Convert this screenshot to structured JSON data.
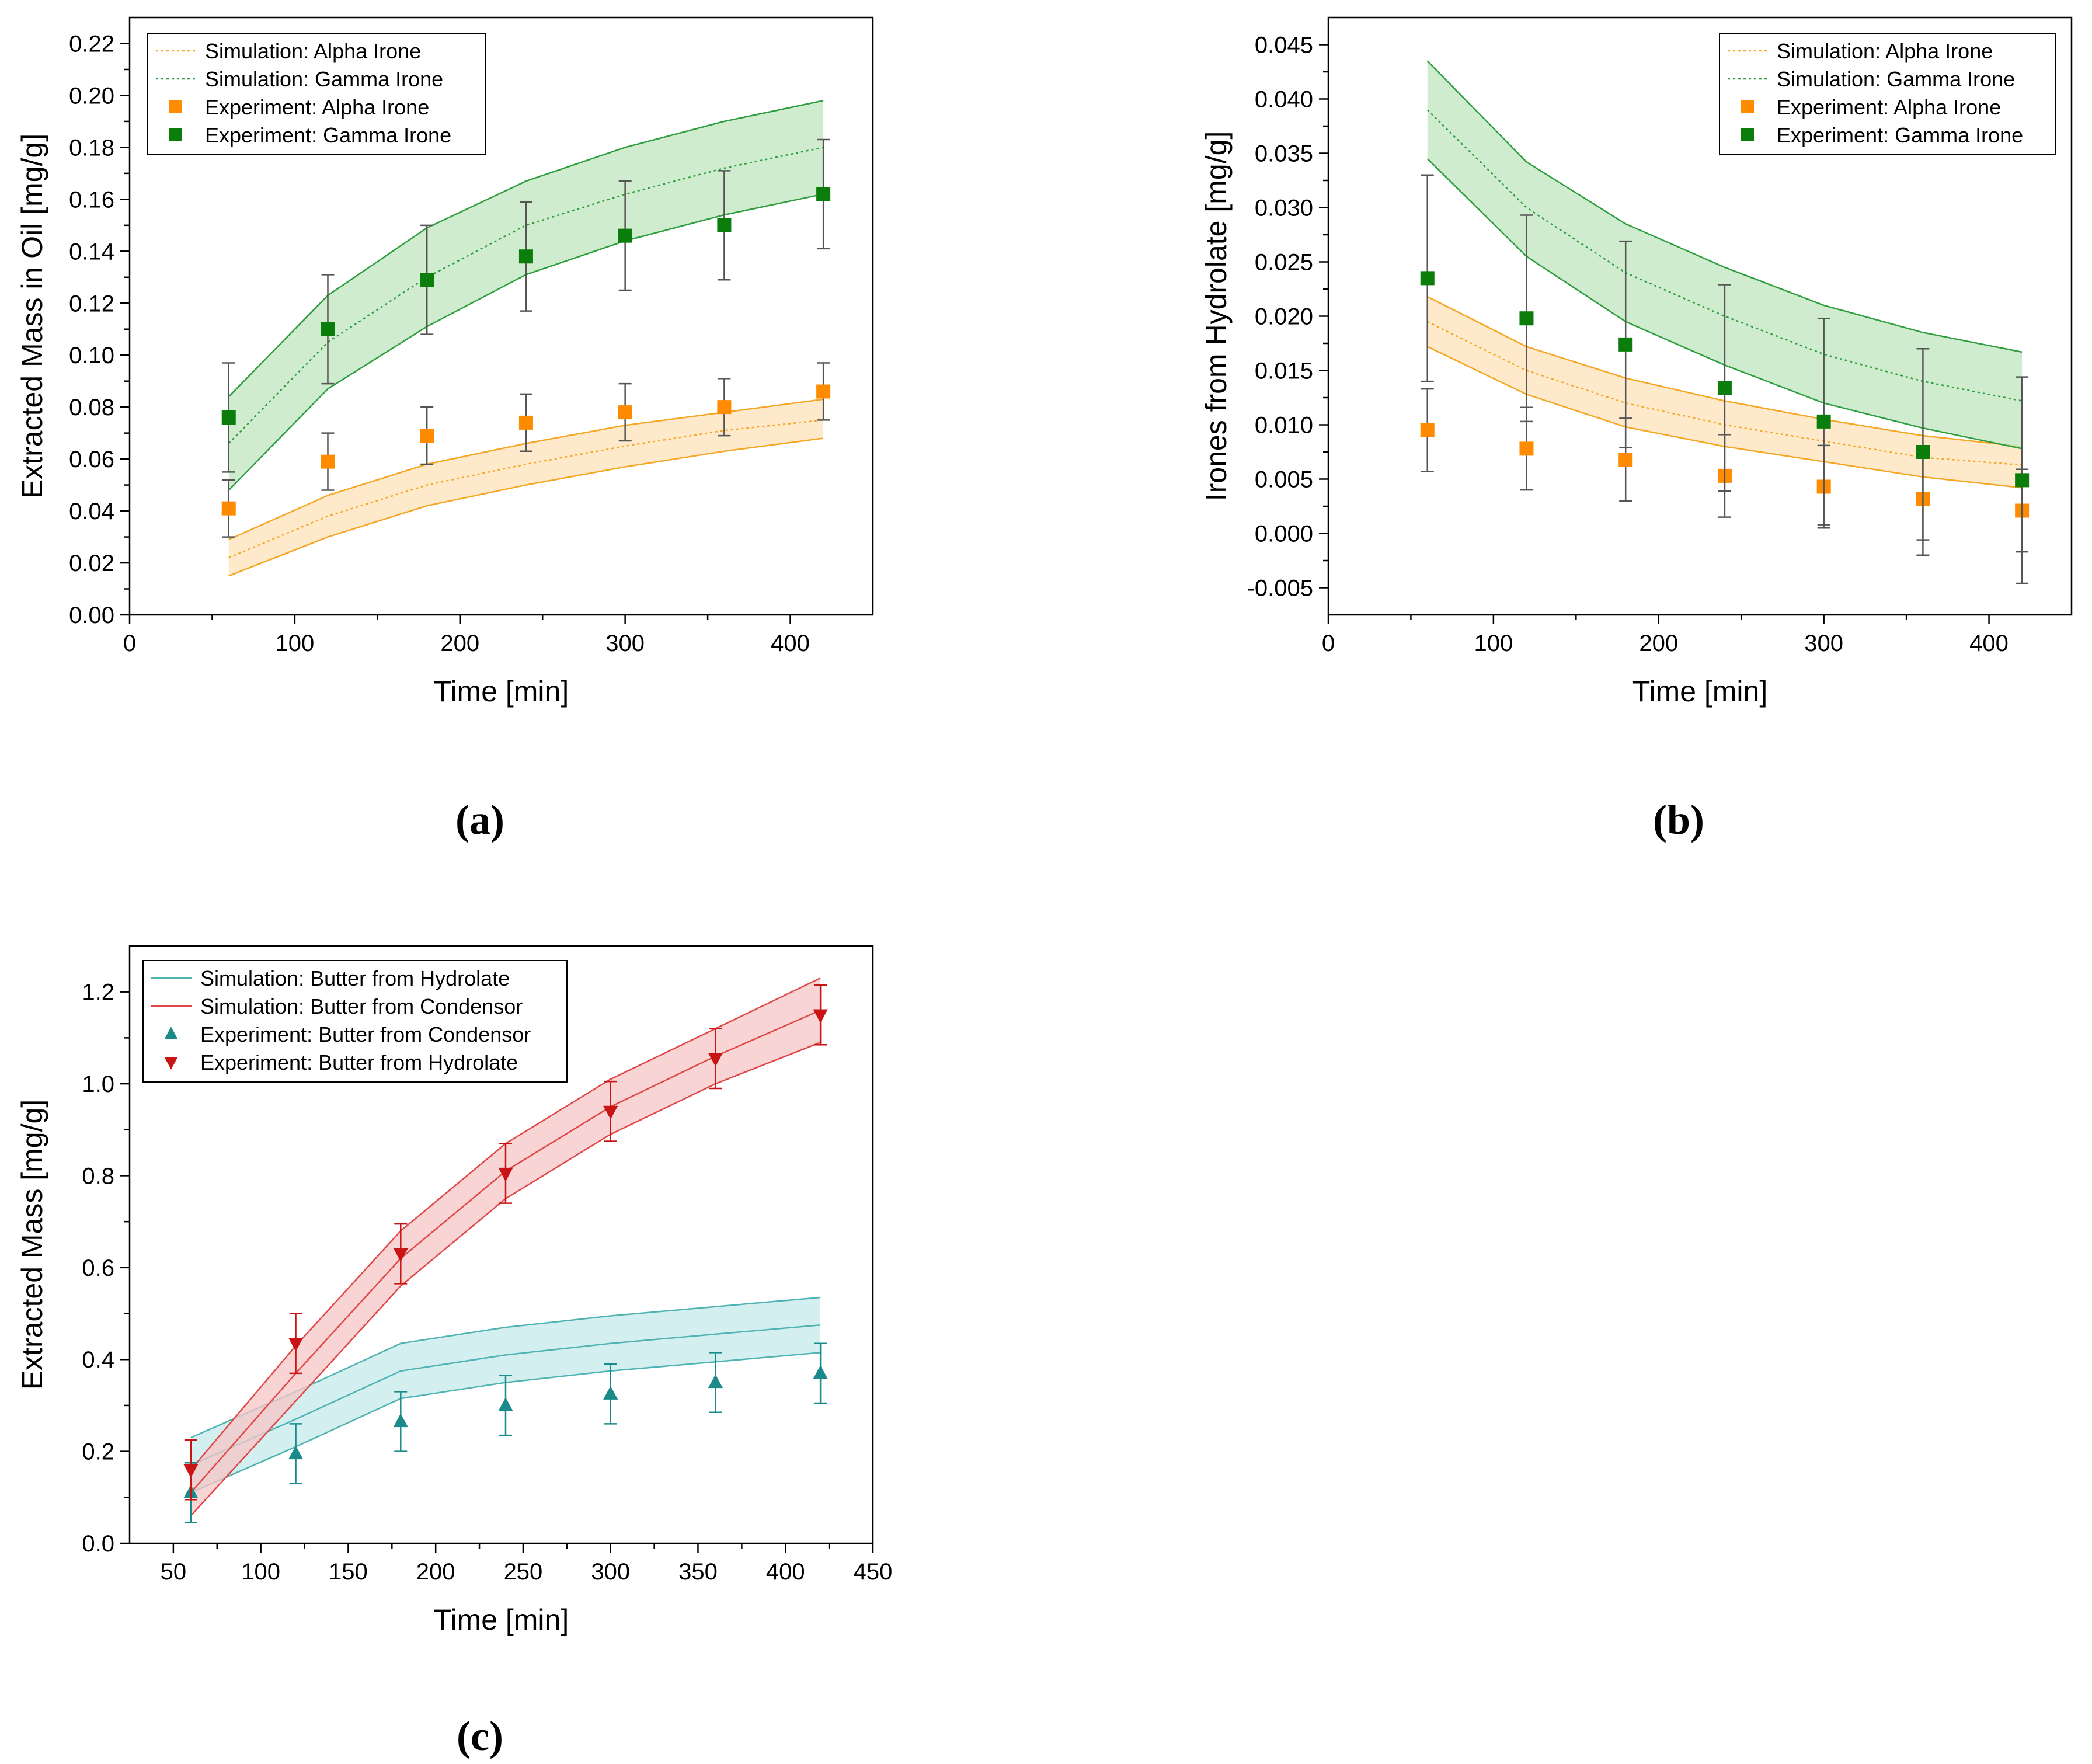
{
  "chart_data": [
    {
      "id": "a",
      "type": "line",
      "panel_label": "(a)",
      "xlabel": "Time [min]",
      "ylabel": "Extracted Mass in Oil [mg/g]",
      "xlim": [
        0,
        450
      ],
      "ylim": [
        0,
        0.23
      ],
      "xticks": [
        0,
        100,
        200,
        300,
        400
      ],
      "yticks": [
        0,
        0.02,
        0.04,
        0.06,
        0.08,
        0.1,
        0.12,
        0.14,
        0.16,
        0.18,
        0.2,
        0.22
      ],
      "xtick_labels": [
        "0",
        "100",
        "200",
        "300",
        "400"
      ],
      "ytick_labels": [
        "0.00",
        "0.02",
        "0.04",
        "0.06",
        "0.08",
        "0.10",
        "0.12",
        "0.14",
        "0.16",
        "0.18",
        "0.20",
        "0.22"
      ],
      "legend_position": "top-left",
      "legend": [
        {
          "label": "Simulation: Alpha Irone",
          "kind": "dotted-line",
          "color": "#f5a623"
        },
        {
          "label": "Simulation: Gamma Irone",
          "kind": "dotted-line",
          "color": "#2e9e3e"
        },
        {
          "label": "Experiment: Alpha Irone",
          "kind": "square",
          "color": "#ff8c00"
        },
        {
          "label": "Experiment: Gamma Irone",
          "kind": "square",
          "color": "#0a7d0a"
        }
      ],
      "x": [
        60,
        120,
        180,
        240,
        300,
        360,
        420
      ],
      "simulation": [
        {
          "name": "Alpha Irone",
          "color": "#f5a623",
          "fill": "#fde2b8",
          "dash": "dotted",
          "values": [
            0.022,
            0.038,
            0.05,
            0.058,
            0.065,
            0.071,
            0.075
          ],
          "lower": [
            0.015,
            0.03,
            0.042,
            0.05,
            0.057,
            0.063,
            0.068
          ],
          "upper": [
            0.029,
            0.046,
            0.058,
            0.066,
            0.073,
            0.078,
            0.083
          ]
        },
        {
          "name": "Gamma Irone",
          "color": "#2e9e3e",
          "fill": "#bfe6bf",
          "dash": "dotted",
          "values": [
            0.066,
            0.105,
            0.13,
            0.15,
            0.162,
            0.172,
            0.18
          ],
          "lower": [
            0.048,
            0.087,
            0.111,
            0.131,
            0.144,
            0.154,
            0.162
          ],
          "upper": [
            0.084,
            0.123,
            0.149,
            0.167,
            0.18,
            0.19,
            0.198
          ]
        }
      ],
      "experiment": [
        {
          "name": "Alpha Irone",
          "color": "#ff8c00",
          "marker": "square",
          "values": [
            0.041,
            0.059,
            0.069,
            0.074,
            0.078,
            0.08,
            0.086
          ],
          "errors": [
            0.011,
            0.011,
            0.011,
            0.011,
            0.011,
            0.011,
            0.011
          ]
        },
        {
          "name": "Gamma Irone",
          "color": "#0a7d0a",
          "marker": "square",
          "values": [
            0.076,
            0.11,
            0.129,
            0.138,
            0.146,
            0.15,
            0.162
          ],
          "errors": [
            0.021,
            0.021,
            0.021,
            0.021,
            0.021,
            0.021,
            0.021
          ]
        }
      ]
    },
    {
      "id": "b",
      "type": "line",
      "panel_label": "(b)",
      "xlabel": "Time [min]",
      "ylabel": "Irones from Hydrolate [mg/g]",
      "xlim": [
        0,
        450
      ],
      "ylim": [
        -0.0075,
        0.0475
      ],
      "xticks": [
        0,
        100,
        200,
        300,
        400
      ],
      "yticks": [
        -0.005,
        0,
        0.005,
        0.01,
        0.015,
        0.02,
        0.025,
        0.03,
        0.035,
        0.04,
        0.045
      ],
      "xtick_labels": [
        "0",
        "100",
        "200",
        "300",
        "400"
      ],
      "ytick_labels": [
        "-0.005",
        "0.000",
        "0.005",
        "0.010",
        "0.015",
        "0.020",
        "0.025",
        "0.030",
        "0.035",
        "0.040",
        "0.045"
      ],
      "legend_position": "top-right",
      "legend": [
        {
          "label": "Simulation: Alpha Irone",
          "kind": "dotted-line",
          "color": "#f5a623"
        },
        {
          "label": "Simulation: Gamma Irone",
          "kind": "dotted-line",
          "color": "#2e9e3e"
        },
        {
          "label": "Experiment: Alpha Irone",
          "kind": "square",
          "color": "#ff8c00"
        },
        {
          "label": "Experiment: Gamma Irone",
          "kind": "square",
          "color": "#0a7d0a"
        }
      ],
      "x": [
        60,
        120,
        180,
        240,
        300,
        360,
        420
      ],
      "simulation": [
        {
          "name": "Alpha Irone",
          "color": "#f5a623",
          "fill": "#fde2b8",
          "dash": "dotted",
          "values": [
            0.0195,
            0.015,
            0.012,
            0.01,
            0.0085,
            0.007,
            0.0063
          ],
          "lower": [
            0.0172,
            0.0128,
            0.0098,
            0.008,
            0.0066,
            0.0052,
            0.0042
          ],
          "upper": [
            0.0218,
            0.0172,
            0.0143,
            0.0122,
            0.0105,
            0.009,
            0.008
          ]
        },
        {
          "name": "Gamma Irone",
          "color": "#2e9e3e",
          "fill": "#bfe6bf",
          "dash": "dotted",
          "values": [
            0.039,
            0.03,
            0.024,
            0.02,
            0.0165,
            0.014,
            0.0122
          ],
          "lower": [
            0.0345,
            0.0255,
            0.0195,
            0.0155,
            0.012,
            0.0097,
            0.0078
          ],
          "upper": [
            0.0435,
            0.0342,
            0.0285,
            0.0245,
            0.021,
            0.0185,
            0.0167
          ]
        }
      ],
      "experiment": [
        {
          "name": "Alpha Irone",
          "color": "#ff8c00",
          "marker": "square",
          "values": [
            0.0095,
            0.0078,
            0.0068,
            0.0053,
            0.0043,
            0.0032,
            0.0021
          ],
          "errors": [
            0.0038,
            0.0038,
            0.0038,
            0.0038,
            0.0038,
            0.0038,
            0.0038
          ]
        },
        {
          "name": "Gamma Irone",
          "color": "#0a7d0a",
          "marker": "square",
          "values": [
            0.0235,
            0.0198,
            0.0174,
            0.0134,
            0.0103,
            0.0075,
            0.0049
          ],
          "errors": [
            0.0095,
            0.0095,
            0.0095,
            0.0095,
            0.0095,
            0.0095,
            0.0095
          ]
        }
      ]
    },
    {
      "id": "c",
      "type": "line",
      "panel_label": "(c)",
      "xlabel": "Time [min]",
      "ylabel": "Extracted Mass [mg/g]",
      "xlim": [
        25,
        450
      ],
      "ylim": [
        0,
        1.3
      ],
      "xticks": [
        50,
        100,
        150,
        200,
        250,
        300,
        350,
        400,
        450
      ],
      "yticks": [
        0,
        0.2,
        0.4,
        0.6,
        0.8,
        1.0,
        1.2
      ],
      "xtick_labels": [
        "50",
        "100",
        "150",
        "200",
        "250",
        "300",
        "350",
        "400",
        "450"
      ],
      "ytick_labels": [
        "0.0",
        "0.2",
        "0.4",
        "0.6",
        "0.8",
        "1.0",
        "1.2"
      ],
      "legend_position": "top-left",
      "legend": [
        {
          "label": "Simulation: Butter from Hydrolate",
          "kind": "solid-line",
          "color": "#4fb3b3"
        },
        {
          "label": "Simulation: Butter from Condensor",
          "kind": "solid-line",
          "color": "#e04848"
        },
        {
          "label": "Experiment: Butter from Condensor",
          "kind": "triangle-up",
          "color": "#1a8a8a"
        },
        {
          "label": "Experiment: Butter from Hydrolate",
          "kind": "triangle-down",
          "color": "#c81414"
        }
      ],
      "x": [
        60,
        120,
        180,
        240,
        300,
        360,
        420
      ],
      "simulation": [
        {
          "name": "Butter from Hydrolate",
          "color": "#4fb3b3",
          "fill": "#c6eaea",
          "dash": "solid",
          "values": [
            0.17,
            0.27,
            0.375,
            0.41,
            0.435,
            0.455,
            0.475
          ],
          "lower": [
            0.11,
            0.21,
            0.315,
            0.35,
            0.375,
            0.395,
            0.415
          ],
          "upper": [
            0.23,
            0.33,
            0.435,
            0.47,
            0.495,
            0.515,
            0.535
          ]
        },
        {
          "name": "Butter from Condensor",
          "color": "#e04848",
          "fill": "#f7c6c6",
          "dash": "solid",
          "values": [
            0.11,
            0.37,
            0.62,
            0.81,
            0.95,
            1.06,
            1.16
          ],
          "lower": [
            0.06,
            0.31,
            0.56,
            0.75,
            0.89,
            1.0,
            1.09
          ],
          "upper": [
            0.16,
            0.43,
            0.68,
            0.87,
            1.01,
            1.12,
            1.23
          ]
        }
      ],
      "experiment": [
        {
          "name": "Butter from Condensor",
          "color": "#1a8a8a",
          "marker": "triangle-up",
          "values": [
            0.11,
            0.195,
            0.265,
            0.3,
            0.325,
            0.35,
            0.37
          ],
          "errors": [
            0.065,
            0.065,
            0.065,
            0.065,
            0.065,
            0.065,
            0.065
          ]
        },
        {
          "name": "Butter from Hydrolate",
          "color": "#c81414",
          "marker": "triangle-down",
          "values": [
            0.16,
            0.435,
            0.63,
            0.805,
            0.94,
            1.055,
            1.15
          ],
          "errors": [
            0.065,
            0.065,
            0.065,
            0.065,
            0.065,
            0.065,
            0.065
          ]
        }
      ]
    }
  ]
}
